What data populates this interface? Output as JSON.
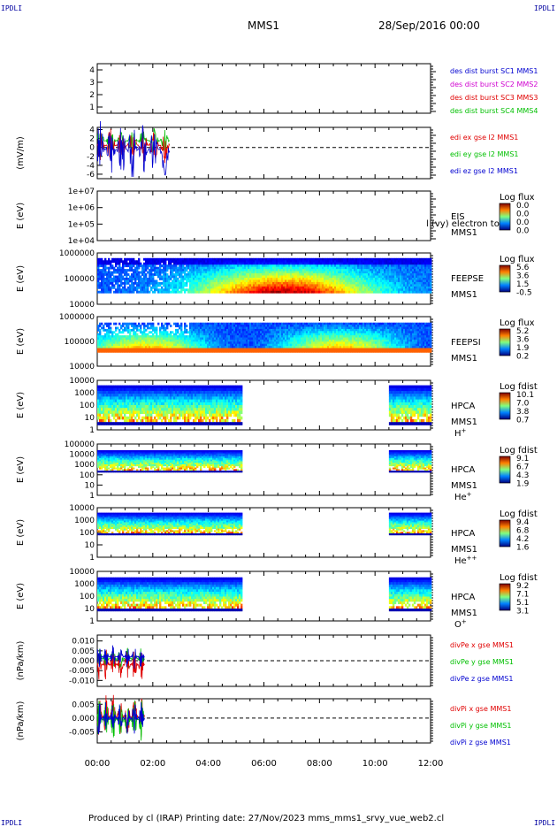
{
  "corner_labels": {
    "tl": "IPDLI",
    "tr": "IPDLI",
    "bl": "IPDLI",
    "br": "IPDLI"
  },
  "header": {
    "spacecraft": "MMS1",
    "date": "28/Sep/2016 00:00"
  },
  "footer": "Produced by cl (IRAP)   Printing date: 27/Nov/2023   mms_mms1_srvy_vue_web2.cl",
  "colors": {
    "red": "#e00000",
    "green": "#00c000",
    "blue": "#0000d0",
    "magenta": "#d000d0",
    "black": "#000000"
  },
  "chart_data": [
    {
      "type": "line",
      "id": "p1",
      "y_ticks": [
        "1",
        "2",
        "3",
        "4"
      ],
      "ylim": [
        0.5,
        4.5
      ],
      "legend": [
        {
          "text": "des dist burst SC1 MMS1",
          "color": "#0000d0"
        },
        {
          "text": "des dist burst SC2 MMS2",
          "color": "#d000d0"
        },
        {
          "text": "des dist burst SC3 MMS3",
          "color": "#e00000"
        },
        {
          "text": "des dist burst SC4 MMS4",
          "color": "#00c000"
        }
      ]
    },
    {
      "type": "line",
      "id": "p2",
      "ylabel": "(mV/m)",
      "y_ticks": [
        "-6",
        "-4",
        "-2",
        "0",
        "2",
        "4"
      ],
      "ylim": [
        -7,
        4.5
      ],
      "legend": [
        {
          "text": "edi ex gse l2 MMS1",
          "color": "#e00000"
        },
        {
          "text": "edi ey gse l2 MMS1",
          "color": "#00c000"
        },
        {
          "text": "edi ez gse l2 MMS1",
          "color": "#0000d0"
        }
      ],
      "data_time_range_h": [
        0,
        2.6
      ]
    },
    {
      "type": "heatmap",
      "id": "p3",
      "ylabel": "E (eV)",
      "y_ticks": [
        "1e+04",
        "1e+05",
        "1e+06",
        "1e+07"
      ],
      "scale_title": "Log flux",
      "scale_values": [
        "0.0",
        "0.0",
        "0.0",
        "0.0"
      ],
      "side_labels": [
        "EIS",
        "MMS1"
      ],
      "overlay_text": "l (vy) electron to"
    },
    {
      "type": "heatmap",
      "id": "p4",
      "ylabel": "E (eV)",
      "y_ticks": [
        "10000",
        "100000",
        "1000000"
      ],
      "scale_title": "Log flux",
      "scale_values": [
        "5.6",
        "3.6",
        "1.5",
        "-0.5"
      ],
      "side_labels": [
        "FEEPSE",
        "MMS1"
      ]
    },
    {
      "type": "heatmap",
      "id": "p5",
      "ylabel": "E (eV)",
      "y_ticks": [
        "10000",
        "100000",
        "1000000"
      ],
      "scale_title": "Log flux",
      "scale_values": [
        "5.2",
        "3.6",
        "1.9",
        "0.2"
      ],
      "side_labels": [
        "FEEPSI",
        "MMS1"
      ]
    },
    {
      "type": "heatmap",
      "id": "p6",
      "ylabel": "E (eV)",
      "y_ticks": [
        "1",
        "10",
        "100",
        "1000",
        "10000"
      ],
      "scale_title": "Log fdist",
      "scale_values": [
        "10.1",
        "7.0",
        "3.8",
        "0.7"
      ],
      "side_labels": [
        "HPCA",
        "MMS1"
      ],
      "species": "H",
      "species_sup": "+"
    },
    {
      "type": "heatmap",
      "id": "p7",
      "ylabel": "E (eV)",
      "y_ticks": [
        "1",
        "10",
        "100",
        "1000",
        "10000",
        "100000"
      ],
      "scale_title": "Log fdist",
      "scale_values": [
        "9.1",
        "6.7",
        "4.3",
        "1.9"
      ],
      "side_labels": [
        "HPCA",
        "MMS1"
      ],
      "species": "He",
      "species_sup": "+"
    },
    {
      "type": "heatmap",
      "id": "p8",
      "ylabel": "E (eV)",
      "y_ticks": [
        "1",
        "10",
        "100",
        "1000",
        "10000"
      ],
      "scale_title": "Log fdist",
      "scale_values": [
        "9.4",
        "6.8",
        "4.2",
        "1.6"
      ],
      "side_labels": [
        "HPCA",
        "MMS1"
      ],
      "species": "He",
      "species_sup": "++"
    },
    {
      "type": "heatmap",
      "id": "p9",
      "ylabel": "E (eV)",
      "y_ticks": [
        "1",
        "10",
        "100",
        "1000",
        "10000"
      ],
      "scale_title": "Log fdist",
      "scale_values": [
        "9.2",
        "7.1",
        "5.1",
        "3.1"
      ],
      "side_labels": [
        "HPCA",
        "MMS1"
      ],
      "species": "O",
      "species_sup": "+"
    },
    {
      "type": "line",
      "id": "p10",
      "ylabel": "(nPa/km)",
      "y_ticks": [
        "-0.010",
        "-0.005",
        "0.000",
        "0.005",
        "0.010"
      ],
      "ylim": [
        -0.013,
        0.013
      ],
      "legend": [
        {
          "text": "divPe x gse MMS1",
          "color": "#e00000"
        },
        {
          "text": "divPe y gse MMS1",
          "color": "#00c000"
        },
        {
          "text": "divPe z gse MMS1",
          "color": "#0000d0"
        }
      ],
      "data_time_range_h": [
        0,
        1.7
      ]
    },
    {
      "type": "line",
      "id": "p11",
      "ylabel": "(nPa/km)",
      "y_ticks": [
        "-0.005",
        "0.000",
        "0.005"
      ],
      "ylim": [
        -0.009,
        0.007
      ],
      "legend": [
        {
          "text": "divPi x gse MMS1",
          "color": "#e00000"
        },
        {
          "text": "divPi y gse MMS1",
          "color": "#00c000"
        },
        {
          "text": "divPi z gse MMS1",
          "color": "#0000d0"
        }
      ],
      "data_time_range_h": [
        0,
        1.7
      ]
    }
  ],
  "x_axis": {
    "ticks": [
      "00:00",
      "02:00",
      "04:00",
      "06:00",
      "08:00",
      "10:00",
      "12:00"
    ],
    "xlim_h": [
      0,
      12
    ]
  }
}
